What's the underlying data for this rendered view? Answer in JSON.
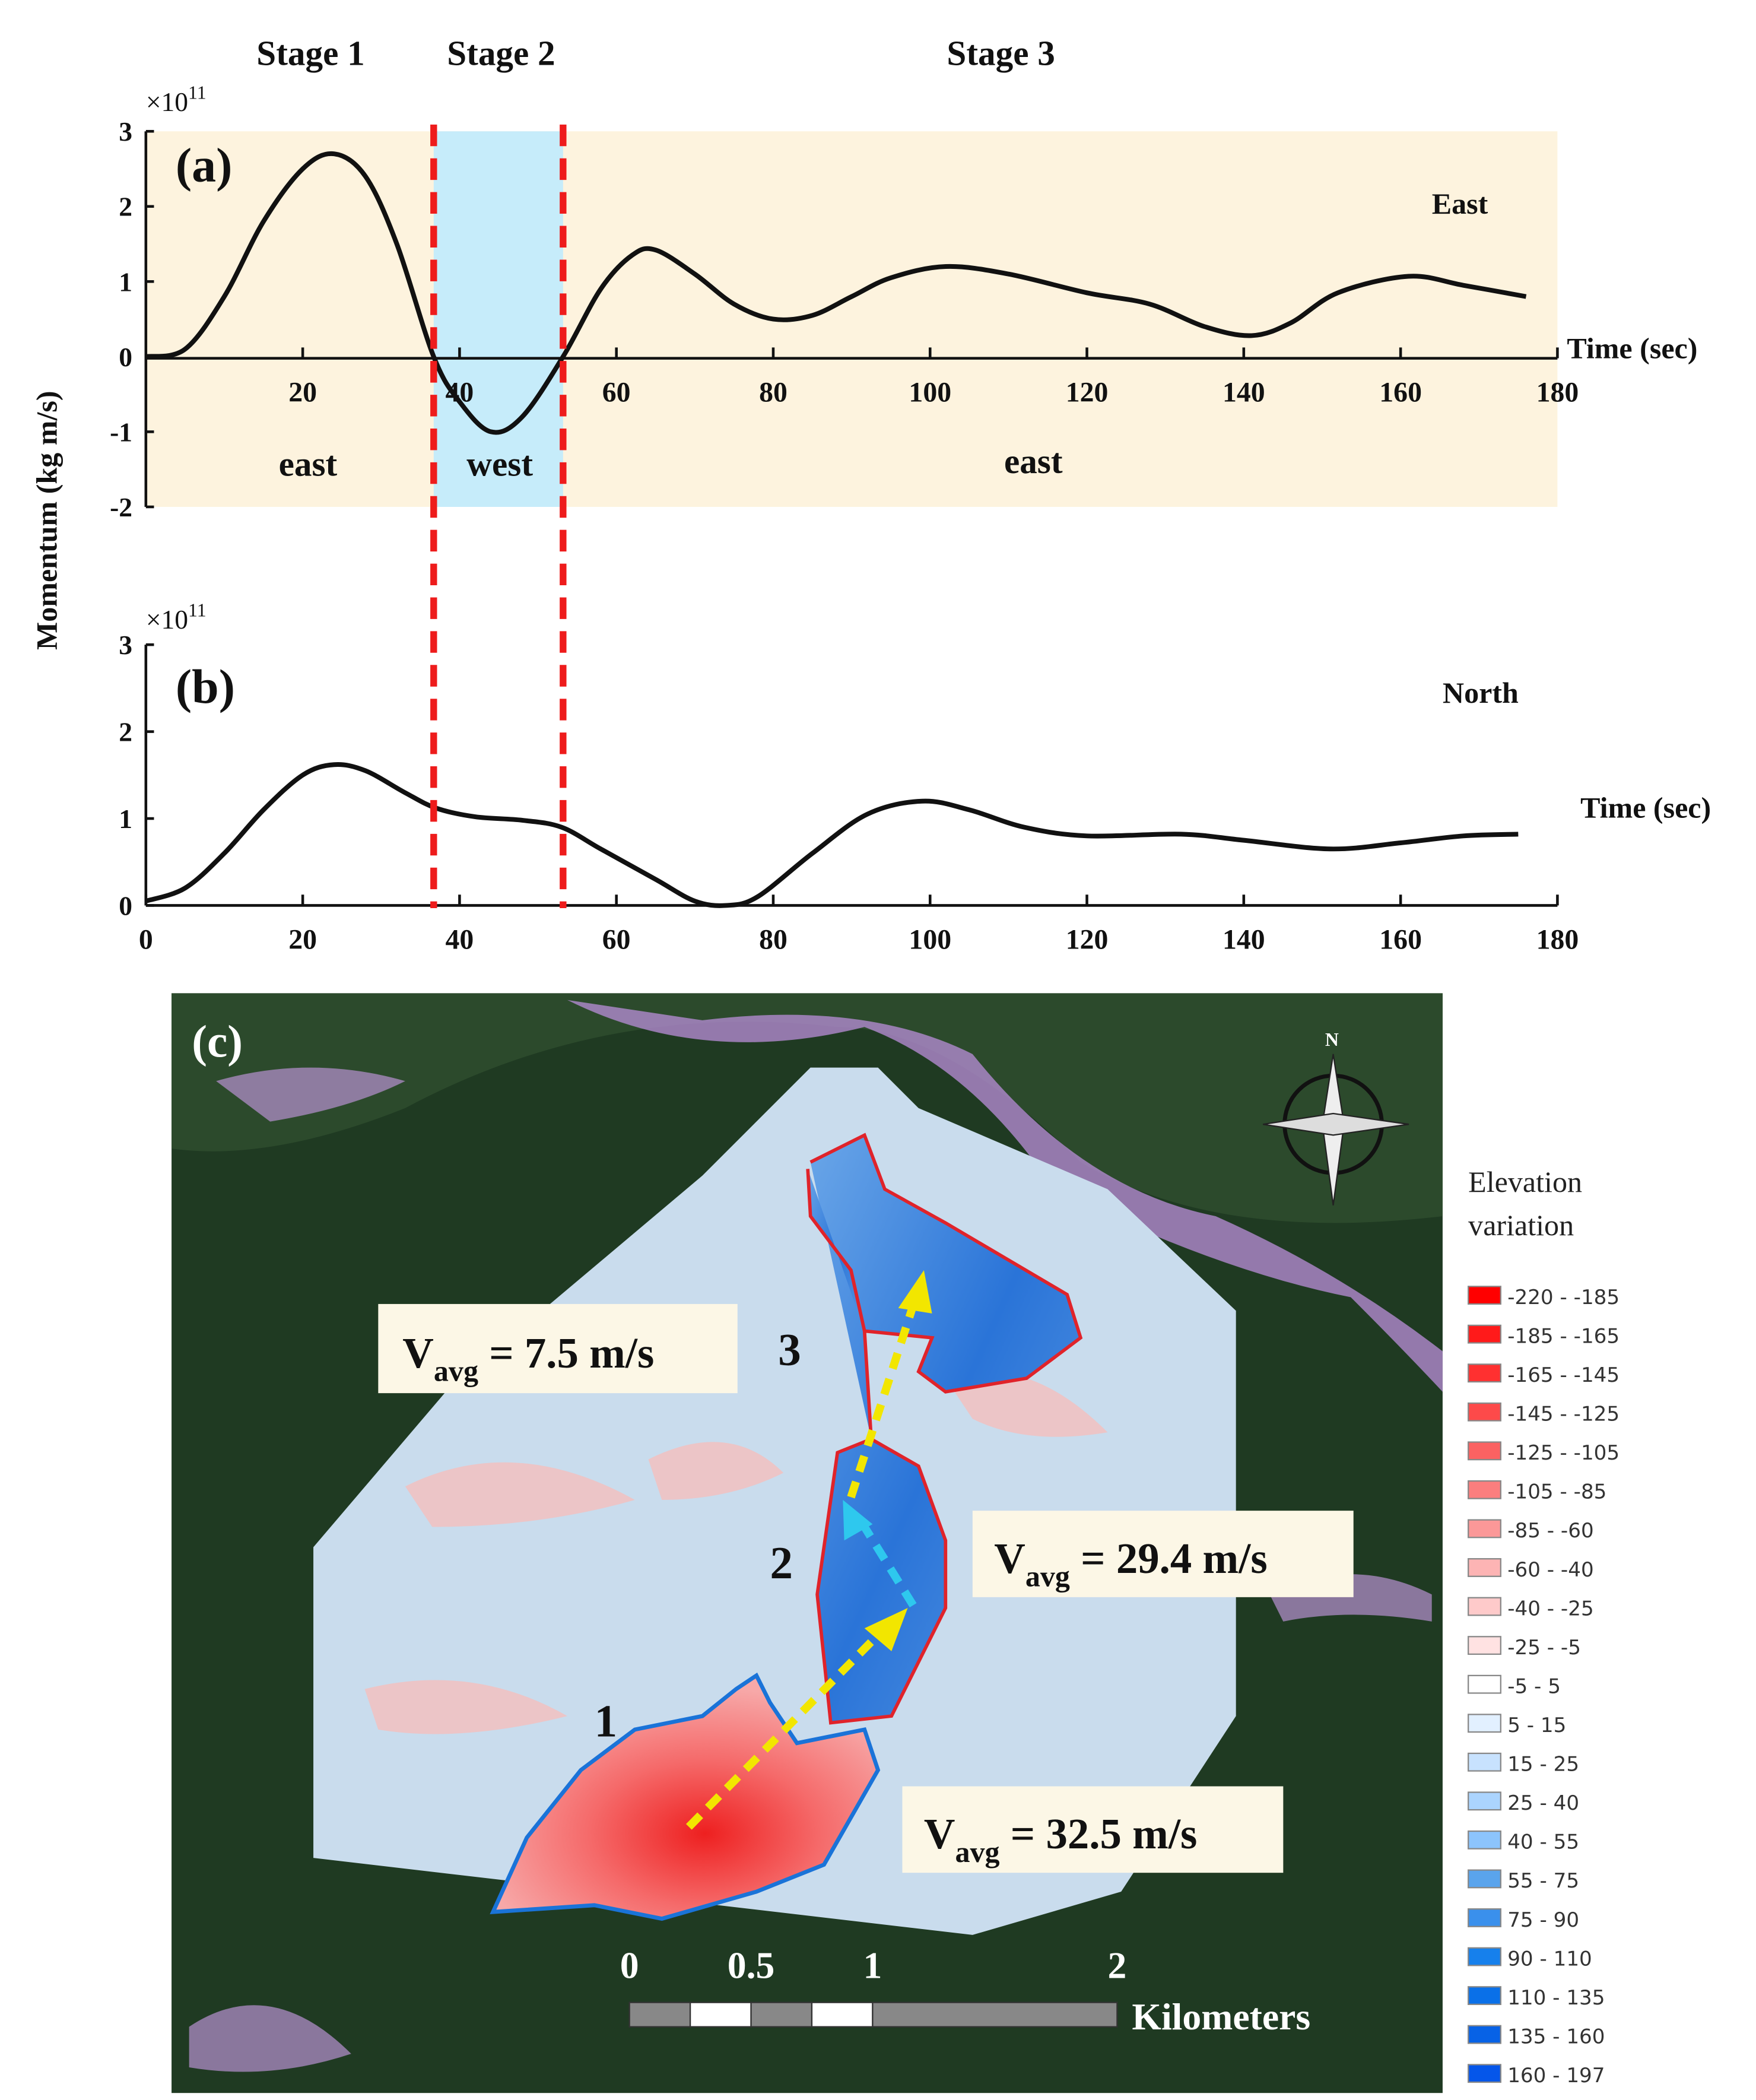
{
  "stages": [
    "Stage 1",
    "Stage 2",
    "Stage 3"
  ],
  "ylabel": "Momentum (kg m/s)",
  "chart_data": [
    {
      "type": "line",
      "panel": "(a)",
      "direction_label": "East",
      "multiplier": "×10",
      "multiplier_exp": "11",
      "xlabel": "Time (sec)",
      "xlim": [
        0,
        180
      ],
      "ylim": [
        -2,
        3
      ],
      "xticks": [
        "20",
        "40",
        "60",
        "80",
        "100",
        "120",
        "140",
        "160",
        "180"
      ],
      "yticks": [
        "3",
        "2",
        "1",
        "0",
        "-1",
        "-2"
      ],
      "region_labels": [
        "east",
        "west",
        "east"
      ],
      "stage_boundaries": [
        36.7,
        53.2
      ],
      "region_colors": {
        "east": "#fdf3de",
        "west": "#c6ecfa"
      },
      "x": [
        0,
        5,
        10,
        15,
        20,
        24,
        28,
        32,
        36.7,
        40,
        44,
        48,
        53.2,
        58,
        62,
        65,
        70,
        75,
        80,
        85,
        90,
        95,
        102,
        110,
        120,
        128,
        135,
        141,
        146,
        152,
        161,
        168,
        176
      ],
      "y": [
        0,
        0.1,
        0.8,
        1.8,
        2.5,
        2.7,
        2.4,
        1.5,
        0,
        -0.6,
        -1.0,
        -0.8,
        0,
        0.9,
        1.35,
        1.42,
        1.1,
        0.7,
        0.5,
        0.55,
        0.8,
        1.05,
        1.2,
        1.1,
        0.85,
        0.7,
        0.4,
        0.28,
        0.45,
        0.85,
        1.07,
        0.95,
        0.8
      ]
    },
    {
      "type": "line",
      "panel": "(b)",
      "direction_label": "North",
      "multiplier": "×10",
      "multiplier_exp": "11",
      "xlabel": "Time (sec)",
      "xlim": [
        0,
        180
      ],
      "ylim": [
        0,
        3
      ],
      "xticks": [
        "0",
        "20",
        "40",
        "60",
        "80",
        "100",
        "120",
        "140",
        "160",
        "180"
      ],
      "yticks": [
        "3",
        "2",
        "1",
        "0"
      ],
      "x": [
        0,
        5,
        10,
        15,
        20,
        24,
        28,
        33,
        37,
        42,
        48,
        53,
        58,
        65,
        70,
        74,
        78,
        85,
        92,
        99,
        105,
        112,
        120,
        132,
        140,
        151,
        160,
        168,
        175
      ],
      "y": [
        0.05,
        0.2,
        0.6,
        1.1,
        1.5,
        1.62,
        1.55,
        1.3,
        1.12,
        1.02,
        0.98,
        0.9,
        0.65,
        0.3,
        0.05,
        0,
        0.1,
        0.6,
        1.05,
        1.2,
        1.1,
        0.9,
        0.8,
        0.82,
        0.75,
        0.65,
        0.72,
        0.8,
        0.82
      ]
    }
  ],
  "map": {
    "panel": "(c)",
    "north": "N",
    "zones": [
      "1",
      "2",
      "3"
    ],
    "velocities": [
      {
        "main": "V",
        "sub": "avg",
        "value": " = 7.5 m/s"
      },
      {
        "main": "V",
        "sub": "avg",
        "value": " = 29.4 m/s"
      },
      {
        "main": "V",
        "sub": "avg",
        "value": " = 32.5 m/s"
      }
    ],
    "scale_labels": [
      "0",
      "0.5",
      "1",
      "2"
    ],
    "scale_unit": "Kilometers"
  },
  "legend": {
    "title_1": "Elevation",
    "title_2": "variation",
    "items": [
      {
        "label": "-220 - -185",
        "color": "#ff0000"
      },
      {
        "label": "-185 - -165",
        "color": "#ff1a1a"
      },
      {
        "label": "-165 - -145",
        "color": "#ff3030"
      },
      {
        "label": "-145 - -125",
        "color": "#fd4a4a"
      },
      {
        "label": "-125 - -105",
        "color": "#fb6262"
      },
      {
        "label": "-105 - -85",
        "color": "#fb7e7e"
      },
      {
        "label": "-85 - -60",
        "color": "#fb9898"
      },
      {
        "label": "-60 - -40",
        "color": "#fdb4b4"
      },
      {
        "label": "-40 - -25",
        "color": "#fecaca"
      },
      {
        "label": "-25 - -5",
        "color": "#ffe2e2"
      },
      {
        "label": "-5 - 5",
        "color": "#ffffff"
      },
      {
        "label": "5 - 15",
        "color": "#e2f0ff"
      },
      {
        "label": "15 - 25",
        "color": "#c8e2fe"
      },
      {
        "label": "25 - 40",
        "color": "#abd4fe"
      },
      {
        "label": "40 - 55",
        "color": "#8cc4fc"
      },
      {
        "label": "55 - 75",
        "color": "#5aa4ec"
      },
      {
        "label": "75 - 90",
        "color": "#3a90ec"
      },
      {
        "label": "90 - 110",
        "color": "#1680ec"
      },
      {
        "label": "110 - 135",
        "color": "#0a70e8"
      },
      {
        "label": "135 - 160",
        "color": "#0762e6"
      },
      {
        "label": "160 - 197",
        "color": "#0556ea"
      }
    ]
  }
}
